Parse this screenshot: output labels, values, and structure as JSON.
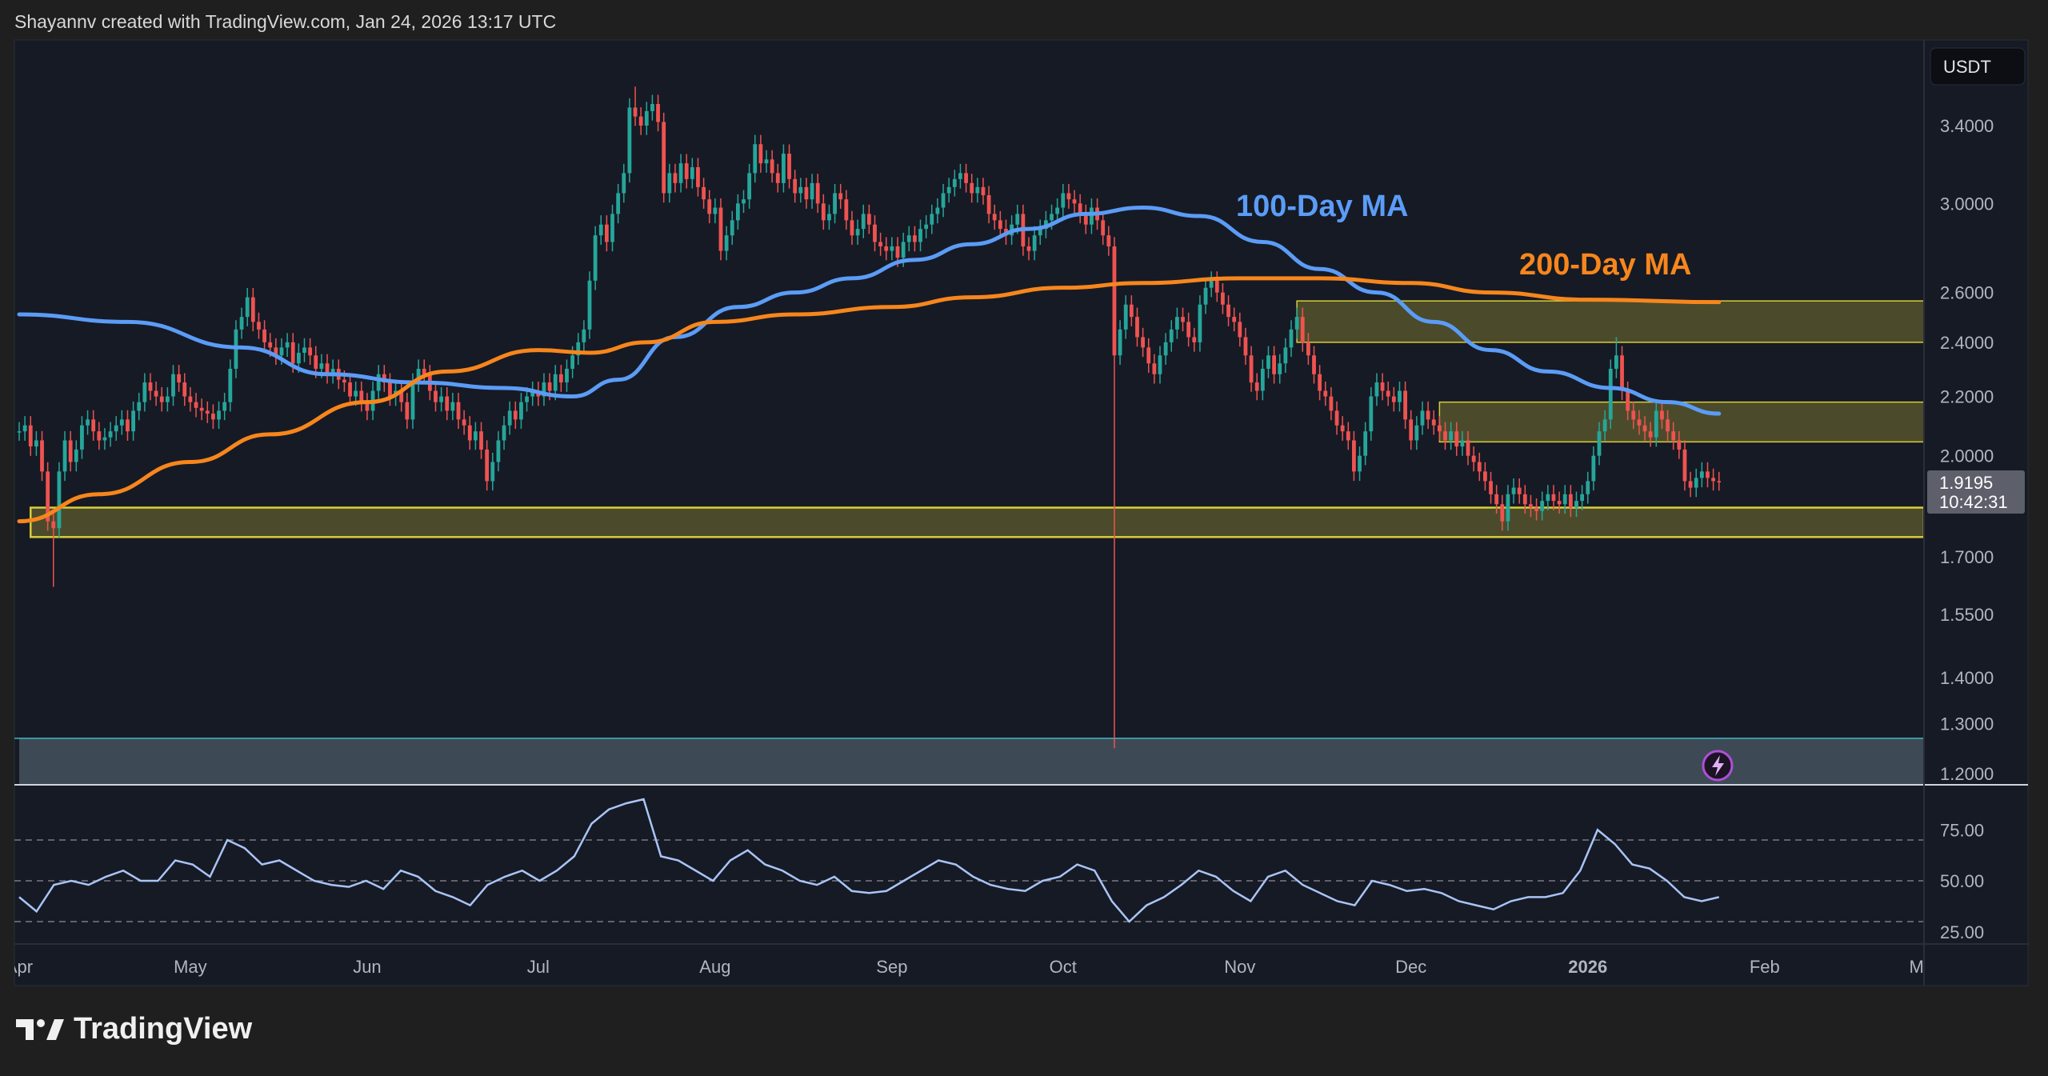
{
  "header": {
    "attribution": "Shayannv created with TradingView.com, Jan 24, 2026 13:17 UTC"
  },
  "logo": {
    "text": "TradingView"
  },
  "price_axis": {
    "currency_button": "USDT",
    "last_price": "1.9195",
    "countdown": "10:42:31"
  },
  "chart_data": [
    {
      "type": "candlestick",
      "title": "",
      "y_scale": "log",
      "ylim": [
        1.18,
        3.75
      ],
      "grid": false,
      "colors": {
        "up": "#26a69a",
        "down": "#ef5350"
      },
      "start_date": "2025-04-01",
      "end_date": "2026-01-24",
      "closes": [
        2.08,
        2.1,
        2.03,
        2.05,
        1.95,
        1.8,
        1.78,
        1.95,
        2.05,
        1.98,
        2.02,
        2.1,
        2.12,
        2.08,
        2.05,
        2.06,
        2.08,
        2.1,
        2.12,
        2.08,
        2.15,
        2.18,
        2.25,
        2.22,
        2.2,
        2.18,
        2.2,
        2.28,
        2.25,
        2.2,
        2.18,
        2.16,
        2.15,
        2.14,
        2.12,
        2.15,
        2.18,
        2.3,
        2.45,
        2.5,
        2.58,
        2.48,
        2.45,
        2.4,
        2.38,
        2.35,
        2.38,
        2.4,
        2.32,
        2.36,
        2.38,
        2.35,
        2.3,
        2.32,
        2.28,
        2.3,
        2.26,
        2.25,
        2.2,
        2.22,
        2.18,
        2.15,
        2.22,
        2.28,
        2.25,
        2.2,
        2.22,
        2.18,
        2.12,
        2.25,
        2.3,
        2.28,
        2.22,
        2.18,
        2.2,
        2.15,
        2.18,
        2.12,
        2.1,
        2.05,
        2.08,
        2.02,
        1.92,
        1.98,
        2.05,
        2.1,
        2.15,
        2.12,
        2.18,
        2.2,
        2.22,
        2.2,
        2.25,
        2.22,
        2.28,
        2.25,
        2.3,
        2.35,
        2.4,
        2.45,
        2.65,
        2.85,
        2.9,
        2.82,
        2.95,
        3.05,
        3.15,
        3.5,
        3.45,
        3.4,
        3.48,
        3.52,
        3.42,
        3.05,
        3.15,
        3.1,
        3.2,
        3.12,
        3.18,
        3.08,
        3.02,
        2.95,
        2.98,
        2.78,
        2.85,
        2.92,
        3.0,
        3.02,
        3.15,
        3.3,
        3.2,
        3.22,
        3.15,
        3.1,
        3.25,
        3.12,
        3.05,
        3.08,
        3.02,
        3.1,
        3.0,
        2.92,
        2.95,
        3.05,
        3.02,
        2.92,
        2.85,
        2.88,
        2.95,
        2.9,
        2.82,
        2.8,
        2.78,
        2.8,
        2.75,
        2.82,
        2.85,
        2.82,
        2.88,
        2.9,
        2.95,
        2.98,
        3.05,
        3.08,
        3.12,
        3.15,
        3.1,
        3.05,
        3.08,
        3.04,
        2.95,
        2.92,
        2.88,
        2.85,
        2.9,
        2.95,
        2.8,
        2.78,
        2.85,
        2.88,
        2.92,
        2.95,
        2.98,
        3.05,
        3.02,
        3.0,
        2.95,
        2.9,
        2.98,
        2.92,
        2.85,
        2.8,
        2.35,
        2.45,
        2.55,
        2.5,
        2.42,
        2.38,
        2.32,
        2.28,
        2.35,
        2.4,
        2.45,
        2.5,
        2.48,
        2.42,
        2.4,
        2.55,
        2.62,
        2.65,
        2.6,
        2.55,
        2.5,
        2.48,
        2.42,
        2.35,
        2.25,
        2.22,
        2.3,
        2.35,
        2.28,
        2.32,
        2.38,
        2.45,
        2.5,
        2.4,
        2.35,
        2.28,
        2.22,
        2.2,
        2.15,
        2.1,
        2.08,
        2.05,
        1.95,
        2.0,
        2.08,
        2.2,
        2.25,
        2.22,
        2.2,
        2.18,
        2.22,
        2.12,
        2.05,
        2.1,
        2.15,
        2.12,
        2.1,
        2.08,
        2.05,
        2.08,
        2.03,
        2.05,
        2.0,
        1.98,
        1.95,
        1.92,
        1.88,
        1.85,
        1.8,
        1.88,
        1.9,
        1.88,
        1.85,
        1.84,
        1.83,
        1.86,
        1.88,
        1.86,
        1.85,
        1.88,
        1.84,
        1.86,
        1.88,
        1.92,
        2.0,
        2.08,
        2.12,
        2.3,
        2.35,
        2.22,
        2.15,
        2.12,
        2.1,
        2.08,
        2.06,
        2.15,
        2.12,
        2.08,
        2.05,
        2.02,
        1.92,
        1.9,
        1.93,
        1.95,
        1.93,
        1.92,
        1.9195
      ],
      "extreme_wicks": [
        {
          "date": "2025-04-07",
          "low": 1.62
        },
        {
          "date": "2025-07-18",
          "high": 3.62
        },
        {
          "date": "2025-10-10",
          "low": 1.25
        },
        {
          "date": "2026-01-06",
          "high": 2.42
        }
      ],
      "moving_averages": [
        {
          "name": "100-Day MA",
          "color": "#5b9cf6",
          "points": [
            [
              "2025-04-01",
              2.51
            ],
            [
              "2025-04-20",
              2.48
            ],
            [
              "2025-05-10",
              2.38
            ],
            [
              "2025-05-25",
              2.28
            ],
            [
              "2025-06-10",
              2.25
            ],
            [
              "2025-06-25",
              2.23
            ],
            [
              "2025-07-07",
              2.2
            ],
            [
              "2025-07-15",
              2.26
            ],
            [
              "2025-07-25",
              2.42
            ],
            [
              "2025-08-05",
              2.54
            ],
            [
              "2025-08-15",
              2.6
            ],
            [
              "2025-08-25",
              2.66
            ],
            [
              "2025-09-05",
              2.74
            ],
            [
              "2025-09-15",
              2.81
            ],
            [
              "2025-09-25",
              2.88
            ],
            [
              "2025-10-05",
              2.95
            ],
            [
              "2025-10-15",
              2.98
            ],
            [
              "2025-10-25",
              2.94
            ],
            [
              "2025-11-05",
              2.82
            ],
            [
              "2025-11-15",
              2.7
            ],
            [
              "2025-11-25",
              2.6
            ],
            [
              "2025-12-05",
              2.48
            ],
            [
              "2025-12-15",
              2.37
            ],
            [
              "2025-12-25",
              2.29
            ],
            [
              "2026-01-05",
              2.23
            ],
            [
              "2026-01-15",
              2.18
            ],
            [
              "2026-01-24",
              2.14
            ]
          ]
        },
        {
          "name": "200-Day MA",
          "color": "#f7861c",
          "points": [
            [
              "2025-04-01",
              1.8
            ],
            [
              "2025-04-15",
              1.88
            ],
            [
              "2025-05-01",
              1.98
            ],
            [
              "2025-05-15",
              2.07
            ],
            [
              "2025-06-01",
              2.18
            ],
            [
              "2025-06-15",
              2.29
            ],
            [
              "2025-07-01",
              2.37
            ],
            [
              "2025-07-10",
              2.36
            ],
            [
              "2025-07-20",
              2.4
            ],
            [
              "2025-08-01",
              2.48
            ],
            [
              "2025-08-15",
              2.51
            ],
            [
              "2025-09-01",
              2.54
            ],
            [
              "2025-09-15",
              2.58
            ],
            [
              "2025-10-01",
              2.62
            ],
            [
              "2025-10-15",
              2.64
            ],
            [
              "2025-11-01",
              2.66
            ],
            [
              "2025-11-15",
              2.66
            ],
            [
              "2025-12-01",
              2.64
            ],
            [
              "2025-12-15",
              2.6
            ],
            [
              "2026-01-01",
              2.57
            ],
            [
              "2026-01-24",
              2.56
            ]
          ]
        }
      ],
      "zones": [
        {
          "from": "2025-04-03",
          "top": 1.84,
          "bottom": 1.755,
          "kind": "support"
        },
        {
          "from": "2025-11-11",
          "top": 2.565,
          "bottom": 2.4,
          "kind": "resistance"
        },
        {
          "from": "2025-12-06",
          "top": 2.18,
          "bottom": 2.045,
          "kind": "resistance"
        },
        {
          "from": "2025-04-01",
          "top": 1.27,
          "bottom": 1.18,
          "kind": "lower-band"
        }
      ],
      "annotations": [
        {
          "text": "100-Day MA",
          "color": "#5b9cf6"
        },
        {
          "text": "200-Day MA",
          "color": "#f7861c"
        }
      ],
      "y_ticks": [
        {
          "value": 3.4,
          "label": "3.4000"
        },
        {
          "value": 3.0,
          "label": "3.0000"
        },
        {
          "value": 2.6,
          "label": "2.6000"
        },
        {
          "value": 2.4,
          "label": "2.4000"
        },
        {
          "value": 2.2,
          "label": "2.2000"
        },
        {
          "value": 2.0,
          "label": "2.0000"
        },
        {
          "value": 1.7,
          "label": "1.7000"
        },
        {
          "value": 1.55,
          "label": "1.5500"
        },
        {
          "value": 1.4,
          "label": "1.4000"
        },
        {
          "value": 1.3,
          "label": "1.3000"
        },
        {
          "value": 1.2,
          "label": "1.2000"
        }
      ],
      "x_ticks": [
        {
          "date": "2025-04-01",
          "label": "Apr"
        },
        {
          "date": "2025-05-01",
          "label": "May"
        },
        {
          "date": "2025-06-01",
          "label": "Jun"
        },
        {
          "date": "2025-07-01",
          "label": "Jul"
        },
        {
          "date": "2025-08-01",
          "label": "Aug"
        },
        {
          "date": "2025-09-01",
          "label": "Sep"
        },
        {
          "date": "2025-10-01",
          "label": "Oct"
        },
        {
          "date": "2025-11-01",
          "label": "Nov"
        },
        {
          "date": "2025-12-01",
          "label": "Dec"
        },
        {
          "date": "2026-01-01",
          "label": "2026",
          "bold": true
        },
        {
          "date": "2026-02-01",
          "label": "Feb"
        },
        {
          "date": "2026-03-01",
          "label": "Mar"
        }
      ]
    },
    {
      "type": "line",
      "title": "",
      "ylim": [
        20,
        95
      ],
      "color": "#a9c4f5",
      "levels": [
        70,
        50,
        30
      ],
      "y_ticks": [
        {
          "value": 75,
          "label": "75.00"
        },
        {
          "value": 50,
          "label": "50.00"
        },
        {
          "value": 25,
          "label": "25.00"
        }
      ],
      "values": [
        42,
        35,
        48,
        50,
        48,
        52,
        55,
        50,
        50,
        60,
        58,
        52,
        70,
        66,
        58,
        60,
        55,
        50,
        48,
        47,
        50,
        46,
        55,
        52,
        45,
        42,
        38,
        48,
        52,
        55,
        50,
        55,
        62,
        78,
        85,
        88,
        90,
        62,
        60,
        55,
        50,
        60,
        65,
        58,
        55,
        50,
        48,
        52,
        45,
        44,
        45,
        50,
        55,
        60,
        58,
        52,
        48,
        46,
        45,
        50,
        52,
        58,
        55,
        40,
        30,
        38,
        42,
        48,
        55,
        52,
        45,
        40,
        52,
        55,
        48,
        44,
        40,
        38,
        50,
        48,
        45,
        46,
        44,
        40,
        38,
        36,
        40,
        42,
        42,
        44,
        55,
        75,
        68,
        58,
        56,
        50,
        42,
        40,
        42
      ]
    }
  ]
}
